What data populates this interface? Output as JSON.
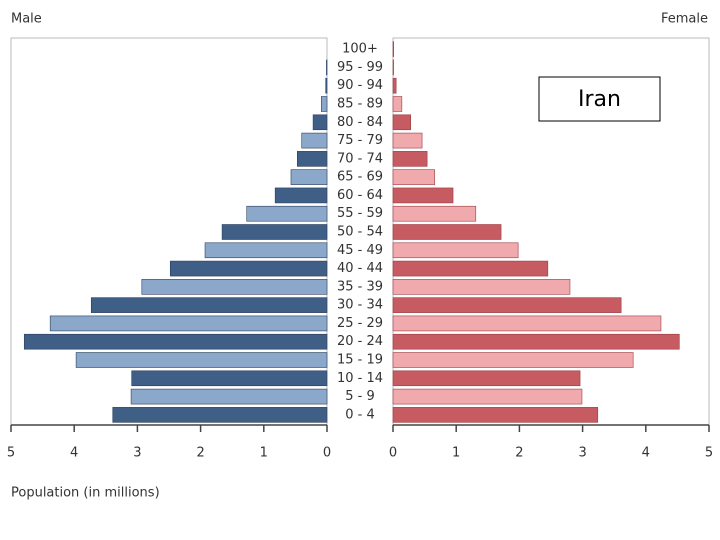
{
  "chart_data": {
    "type": "pyramid",
    "annotation": "Iran",
    "xlabel": "Population (in millions)",
    "categories": [
      "0 - 4",
      "5 - 9",
      "10 - 14",
      "15 - 19",
      "20 - 24",
      "25 - 29",
      "30 - 34",
      "35 - 39",
      "40 - 44",
      "45 - 49",
      "50 - 54",
      "55 - 59",
      "60 - 64",
      "65 - 69",
      "70 - 74",
      "75 - 79",
      "80 - 84",
      "85 - 89",
      "90 - 94",
      "95 - 99",
      "100+"
    ],
    "series": [
      {
        "name": "Male",
        "colors": [
          "#3f5f86",
          "#8ba8cb"
        ],
        "values": [
          3.39,
          3.1,
          3.09,
          3.97,
          4.79,
          4.38,
          3.73,
          2.93,
          2.48,
          1.93,
          1.66,
          1.27,
          0.82,
          0.57,
          0.47,
          0.4,
          0.22,
          0.09,
          0.02,
          0.01,
          0
        ]
      },
      {
        "name": "Female",
        "colors": [
          "#c65b62",
          "#f0a9ac"
        ],
        "values": [
          3.24,
          2.99,
          2.96,
          3.8,
          4.53,
          4.24,
          3.61,
          2.8,
          2.45,
          1.98,
          1.71,
          1.31,
          0.95,
          0.66,
          0.54,
          0.46,
          0.28,
          0.14,
          0.05,
          0.01,
          0.01
        ]
      }
    ],
    "xlim": [
      0,
      5
    ],
    "xticks": [
      0,
      1,
      2,
      3,
      4,
      5
    ]
  }
}
